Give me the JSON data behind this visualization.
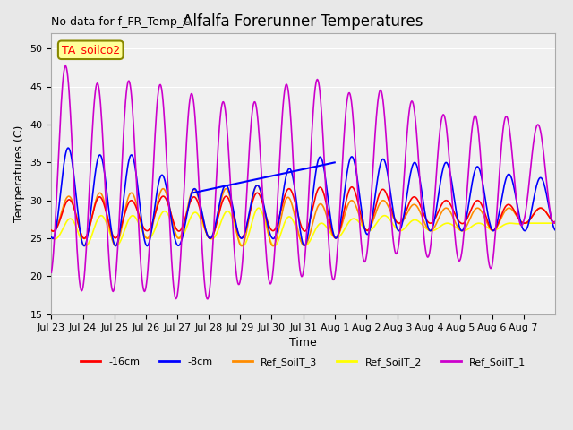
{
  "title": "Alfalfa Forerunner Temperatures",
  "xlabel": "Time",
  "ylabel": "Temperatures (C)",
  "ylim": [
    15,
    52
  ],
  "yticks": [
    15,
    20,
    25,
    30,
    35,
    40,
    45,
    50
  ],
  "annotation_text": "No data for f_FR_Temp_C",
  "legend_label_text": "TA_soilco2",
  "background_color": "#e8e8e8",
  "plot_bg_color": "#f0f0f0",
  "colors": {
    "neg16cm": "#ff0000",
    "neg8cm": "#0000ff",
    "ref3": "#ff8c00",
    "ref2": "#ffff00",
    "ref1": "#cc00cc"
  },
  "legend_labels": [
    "-16cm",
    "-8cm",
    "Ref_SoilT_3",
    "Ref_SoilT_2",
    "Ref_SoilT_1"
  ],
  "x_tick_labels": [
    "Jul 23",
    "Jul 24",
    "Jul 25",
    "Jul 26",
    "Jul 27",
    "Jul 28",
    "Jul 29",
    "Jul 30",
    "Jul 31",
    "Aug 1",
    "Aug 2",
    "Aug 3",
    "Aug 4",
    "Aug 5",
    "Aug 6",
    "Aug 7"
  ],
  "num_days": 16,
  "peak_ref1": [
    50,
    45,
    46,
    45.5,
    45,
    43,
    43,
    43,
    48,
    43.5,
    45,
    44,
    42,
    40.5,
    42,
    40
  ],
  "trough_ref1": [
    20,
    18,
    18,
    18,
    17,
    17,
    19,
    19,
    20,
    19.5,
    22,
    23,
    22.5,
    22,
    21,
    27
  ],
  "peak_neg16": [
    29,
    31,
    30,
    30,
    31,
    30,
    31,
    31,
    32,
    31.5,
    32,
    31,
    30,
    30,
    30,
    29
  ],
  "trough_neg16": [
    26,
    25,
    25,
    26,
    26,
    25,
    25,
    26,
    26,
    25,
    26,
    27,
    27,
    27,
    26,
    27
  ],
  "peak_neg8": [
    38,
    36,
    36,
    36,
    31,
    32,
    32,
    32,
    36,
    35.5,
    36,
    35,
    35,
    35,
    34,
    33
  ],
  "trough_neg8": [
    25,
    24,
    24,
    24,
    24,
    25,
    25,
    25,
    24,
    25,
    25.5,
    26,
    26,
    26,
    26,
    26
  ],
  "peak_ref3": [
    30,
    31,
    31,
    31,
    32,
    31,
    32,
    32,
    29,
    30,
    30,
    30,
    29,
    29,
    29,
    29
  ],
  "trough_ref3": [
    26,
    25,
    24,
    25,
    25,
    25,
    24,
    24,
    24,
    25,
    26,
    27,
    26,
    26,
    26,
    27
  ],
  "peak_ref2": [
    27,
    28,
    28,
    28,
    29,
    28,
    29,
    29,
    27,
    27,
    28,
    28,
    27,
    27,
    27,
    27
  ],
  "trough_ref2": [
    25,
    24,
    24,
    25,
    25,
    25,
    24,
    24,
    24,
    25,
    26,
    26,
    26,
    26,
    26,
    27
  ],
  "trend_line": [
    [
      4.5,
      31
    ],
    [
      9.0,
      35
    ]
  ]
}
